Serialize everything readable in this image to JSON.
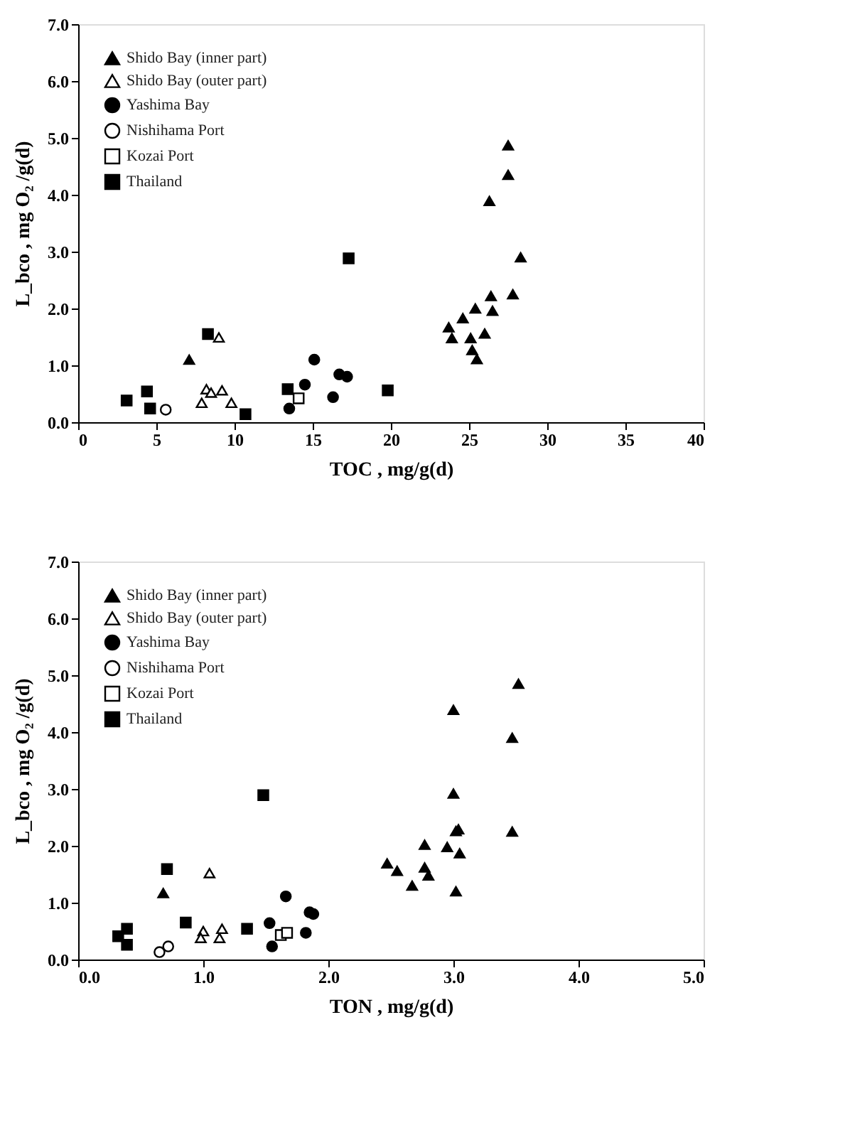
{
  "chart_data": [
    {
      "type": "scatter",
      "xlabel": "TOC  ,  mg/g(d)",
      "ylabel": "L_bco ,  mg O₂ /g(d)",
      "xlim": [
        0,
        40
      ],
      "ylim": [
        0,
        7
      ],
      "xticks": [
        0,
        5,
        10,
        15,
        20,
        25,
        30,
        35,
        40
      ],
      "yticks": [
        {
          "value": 0,
          "label": "0.0"
        },
        {
          "value": 1,
          "label": "1.0"
        },
        {
          "value": 2,
          "label": "2.0"
        },
        {
          "value": 3,
          "label": "3.0"
        },
        {
          "value": 4,
          "label": "4.0"
        },
        {
          "value": 5,
          "label": "5.0"
        },
        {
          "value": 6,
          "label": "6.0"
        },
        {
          "value": 7,
          "label": "7.0"
        }
      ],
      "grid": false,
      "legend": "top left",
      "series": [
        {
          "name": "Shido Bay (inner part)",
          "color": "#000000",
          "marker": "triangle",
          "x": [
            7.1,
            23.7,
            23.9,
            24.6,
            25.4,
            26.4,
            26.5,
            25.1,
            25.2,
            25.5,
            26.0,
            26.3,
            27.5,
            27.5,
            28.3,
            27.8
          ],
          "values": [
            1.1,
            1.67,
            1.48,
            1.83,
            2.0,
            2.22,
            1.96,
            1.48,
            1.27,
            1.11,
            1.56,
            3.89,
            4.87,
            4.35,
            2.9,
            2.25
          ]
        },
        {
          "name": "Shido Bay (outer part)",
          "color": "#ffffff",
          "marker": "triangle",
          "x": [
            9.0,
            7.9,
            8.2,
            9.2,
            9.8,
            8.5
          ],
          "values": [
            1.49,
            0.34,
            0.58,
            0.56,
            0.34,
            0.52
          ]
        },
        {
          "name": "Yashima Bay",
          "color": "#000000",
          "marker": "circle",
          "x": [
            13.5,
            14.5,
            15.1,
            16.3,
            16.7,
            17.2
          ],
          "values": [
            0.24,
            0.66,
            1.1,
            0.44,
            0.84,
            0.8
          ]
        },
        {
          "name": "Nishihama Port",
          "color": "#ffffff",
          "marker": "circle",
          "x": [
            5.6
          ],
          "values": [
            0.22
          ]
        },
        {
          "name": "Kozai Port",
          "color": "#ffffff",
          "marker": "square",
          "x": [
            14.1
          ],
          "values": [
            0.42
          ]
        },
        {
          "name": "Thailand",
          "color": "#000000",
          "marker": "square",
          "x": [
            3.1,
            4.4,
            4.6,
            8.3,
            10.7,
            13.4,
            17.3,
            19.8
          ],
          "values": [
            0.38,
            0.54,
            0.24,
            1.55,
            0.14,
            0.58,
            2.88,
            0.56
          ]
        }
      ]
    },
    {
      "type": "scatter",
      "xlabel": "TON  ,  mg/g(d)",
      "ylabel": "L_bco ,  mg O₂ /g(d)",
      "xlim": [
        0,
        5
      ],
      "ylim": [
        0,
        7
      ],
      "xticks": [
        {
          "value": 0,
          "label": "0.0"
        },
        {
          "value": 1,
          "label": "1.0"
        },
        {
          "value": 2,
          "label": "2.0"
        },
        {
          "value": 3,
          "label": "3.0"
        },
        {
          "value": 4,
          "label": "4.0"
        },
        {
          "value": 5,
          "label": "5.0"
        }
      ],
      "yticks": [
        {
          "value": 0,
          "label": "0.0"
        },
        {
          "value": 1,
          "label": "1.0"
        },
        {
          "value": 2,
          "label": "2.0"
        },
        {
          "value": 3,
          "label": "3.0"
        },
        {
          "value": 4,
          "label": "4.0"
        },
        {
          "value": 5,
          "label": "5.0"
        },
        {
          "value": 6,
          "label": "6.0"
        },
        {
          "value": 7,
          "label": "7.0"
        }
      ],
      "grid": false,
      "legend": "top left",
      "series": [
        {
          "name": "Shido Bay (inner part)",
          "color": "#000000",
          "marker": "triangle",
          "x": [
            0.68,
            2.47,
            2.55,
            2.67,
            2.77,
            2.77,
            2.8,
            2.95,
            3.02,
            3.04,
            3.05,
            3.02,
            3.0,
            3.0,
            3.52,
            3.47,
            3.47
          ],
          "values": [
            1.17,
            1.69,
            1.56,
            1.3,
            2.02,
            1.62,
            1.48,
            1.98,
            2.26,
            2.29,
            1.87,
            1.2,
            2.92,
            4.39,
            4.85,
            3.9,
            2.25
          ]
        },
        {
          "name": "Shido Bay (outer part)",
          "color": "#ffffff",
          "marker": "triangle",
          "x": [
            1.05,
            1.0,
            0.98,
            1.13,
            1.15
          ],
          "values": [
            1.52,
            0.5,
            0.38,
            0.38,
            0.54
          ]
        },
        {
          "name": "Yashima Bay",
          "color": "#000000",
          "marker": "circle",
          "x": [
            1.53,
            1.55,
            1.66,
            1.82,
            1.85,
            1.88
          ],
          "values": [
            0.64,
            0.23,
            1.11,
            0.47,
            0.83,
            0.8
          ]
        },
        {
          "name": "Nishihama Port",
          "color": "#ffffff",
          "marker": "circle",
          "x": [
            0.65,
            0.72
          ],
          "values": [
            0.13,
            0.23
          ]
        },
        {
          "name": "Kozai Port",
          "color": "#ffffff",
          "marker": "square",
          "x": [
            1.62,
            1.67
          ],
          "values": [
            0.43,
            0.47
          ]
        },
        {
          "name": "Thailand",
          "color": "#000000",
          "marker": "square",
          "x": [
            0.32,
            0.39,
            0.39,
            0.71,
            0.86,
            1.35,
            1.48
          ],
          "values": [
            0.41,
            0.54,
            0.26,
            1.59,
            0.65,
            0.54,
            2.89
          ]
        }
      ]
    }
  ]
}
